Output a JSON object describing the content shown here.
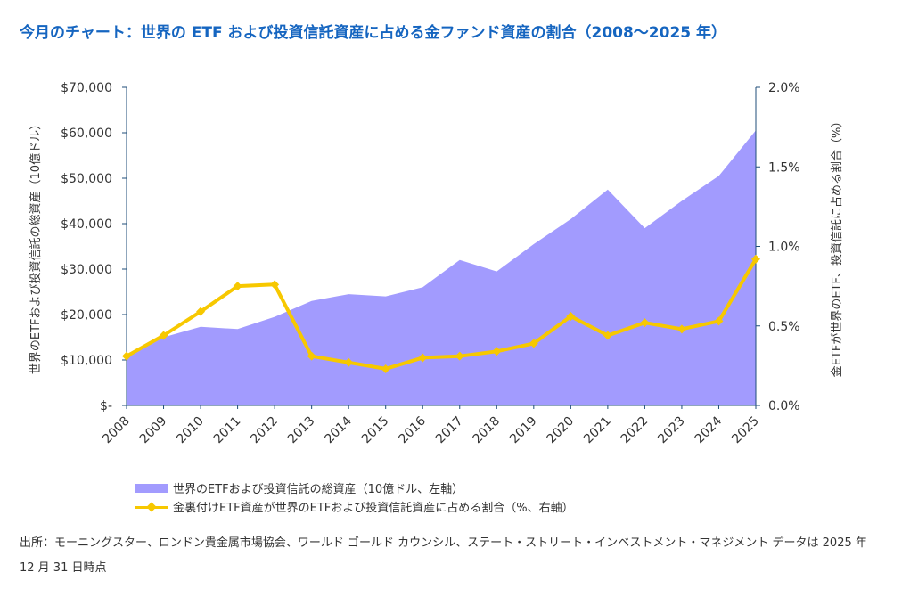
{
  "title": "今月のチャート：世界の ETF および投資信託資産に占める金ファンド資産の割合（2008～2025 年）",
  "chart_data": {
    "type": "area+line",
    "categories": [
      "2008",
      "2009",
      "2010",
      "2011",
      "2012",
      "2013",
      "2014",
      "2015",
      "2016",
      "2017",
      "2018",
      "2019",
      "2020",
      "2021",
      "2022",
      "2023",
      "2024",
      "2025"
    ],
    "series": [
      {
        "name": "世界のETFおよび投資信託の総資産（10億ドル、左軸）",
        "type": "area",
        "axis": "left",
        "color": "#a29bfe",
        "values": [
          10500,
          15000,
          17300,
          16800,
          19500,
          23000,
          24500,
          24000,
          26000,
          32000,
          29500,
          35500,
          41000,
          47500,
          39000,
          45000,
          50500,
          60500
        ]
      },
      {
        "name": "金裏付けETF資産が世界のETFおよび投資信託資産に占める割合（%、右軸）",
        "type": "line",
        "axis": "right",
        "color": "#f7c800",
        "values": [
          0.31,
          0.44,
          0.59,
          0.75,
          0.76,
          0.31,
          0.27,
          0.23,
          0.3,
          0.31,
          0.34,
          0.39,
          0.56,
          0.44,
          0.52,
          0.48,
          0.53,
          0.92
        ]
      }
    ],
    "left_axis": {
      "label": "世界のETFおよび投資信託の総資産（10億ドル）",
      "ylim": [
        0,
        70000
      ],
      "ticks": [
        "$-",
        "$10,000",
        "$20,000",
        "$30,000",
        "$40,000",
        "$50,000",
        "$60,000",
        "$70,000"
      ]
    },
    "right_axis": {
      "label": "金ETFが世界のETF、投資信託に占める割合（%）",
      "ylim": [
        0,
        2.0
      ],
      "ticks": [
        "0.0%",
        "0.5%",
        "1.0%",
        "1.5%",
        "2.0%"
      ]
    },
    "grid": false,
    "legend_position": "bottom-left"
  },
  "legend": {
    "area_label": "世界のETFおよび投資信託の総資産（10億ドル、左軸）",
    "line_label": "金裏付けETF資産が世界のETFおよび投資信託資産に占める割合（%、右軸）"
  },
  "source": "出所：モーニングスター、ロンドン貴金属市場協会、ワールド ゴールド カウンシル、ステート・ストリート・インベストメント・マネジメント データは 2025 年 12 月 31 日時点"
}
